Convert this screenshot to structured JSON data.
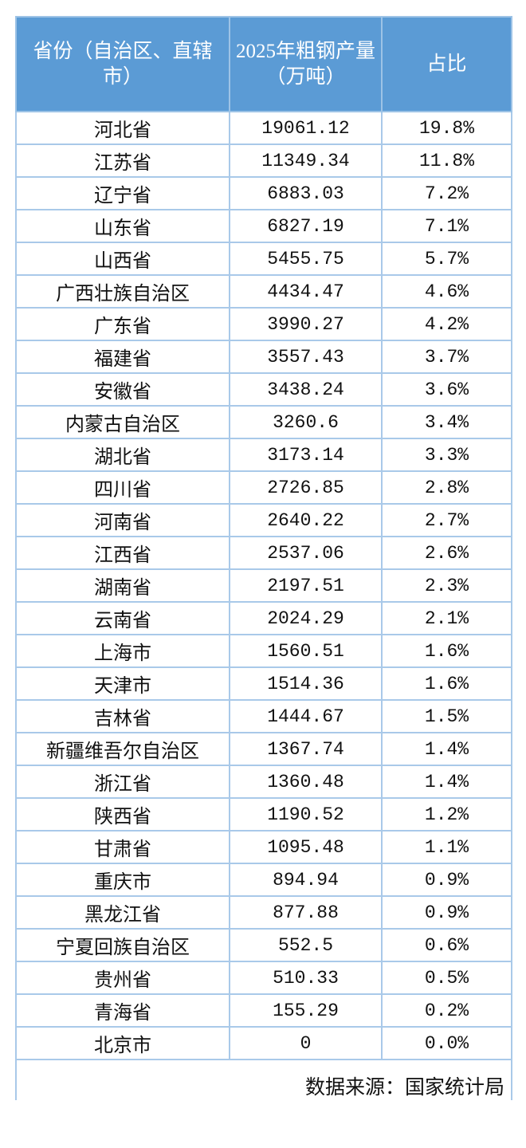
{
  "header": {
    "col1": "省份（自治区、直辖市）",
    "col2": "2025年粗钢产量（万吨）",
    "col3": "占比"
  },
  "rows": [
    [
      "河北省",
      "19061.12",
      "19.8%"
    ],
    [
      "江苏省",
      "11349.34",
      "11.8%"
    ],
    [
      "辽宁省",
      "6883.03",
      "7.2%"
    ],
    [
      "山东省",
      "6827.19",
      "7.1%"
    ],
    [
      "山西省",
      "5455.75",
      "5.7%"
    ],
    [
      "广西壮族自治区",
      "4434.47",
      "4.6%"
    ],
    [
      "广东省",
      "3990.27",
      "4.2%"
    ],
    [
      "福建省",
      "3557.43",
      "3.7%"
    ],
    [
      "安徽省",
      "3438.24",
      "3.6%"
    ],
    [
      "内蒙古自治区",
      "3260.6",
      "3.4%"
    ],
    [
      "湖北省",
      "3173.14",
      "3.3%"
    ],
    [
      "四川省",
      "2726.85",
      "2.8%"
    ],
    [
      "河南省",
      "2640.22",
      "2.7%"
    ],
    [
      "江西省",
      "2537.06",
      "2.6%"
    ],
    [
      "湖南省",
      "2197.51",
      "2.3%"
    ],
    [
      "云南省",
      "2024.29",
      "2.1%"
    ],
    [
      "上海市",
      "1560.51",
      "1.6%"
    ],
    [
      "天津市",
      "1514.36",
      "1.6%"
    ],
    [
      "吉林省",
      "1444.67",
      "1.5%"
    ],
    [
      "新疆维吾尔自治区",
      "1367.74",
      "1.4%"
    ],
    [
      "浙江省",
      "1360.48",
      "1.4%"
    ],
    [
      "陕西省",
      "1190.52",
      "1.2%"
    ],
    [
      "甘肃省",
      "1095.48",
      "1.1%"
    ],
    [
      "重庆市",
      "894.94",
      "0.9%"
    ],
    [
      "黑龙江省",
      "877.88",
      "0.9%"
    ],
    [
      "宁夏回族自治区",
      "552.5",
      "0.6%"
    ],
    [
      "贵州省",
      "510.33",
      "0.5%"
    ],
    [
      "青海省",
      "155.29",
      "0.2%"
    ],
    [
      "北京市",
      "0",
      "0.0%"
    ]
  ],
  "footer": "数据来源：国家统计局",
  "colors": {
    "header_bg": "#5b9bd5",
    "border": "#9dc3e6"
  }
}
